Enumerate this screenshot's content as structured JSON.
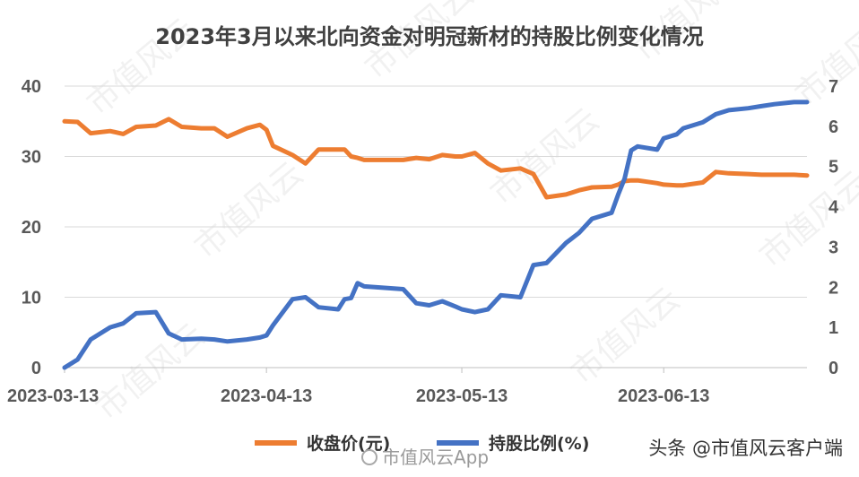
{
  "chart_data": {
    "type": "line",
    "title": "2023年3月以来北向资金对明冠新材的持股比例变化情况",
    "x": [
      "2023-03-13",
      "2023-03-15",
      "2023-03-17",
      "2023-03-20",
      "2023-03-22",
      "2023-03-24",
      "2023-03-27",
      "2023-03-29",
      "2023-03-31",
      "2023-04-03",
      "2023-04-05",
      "2023-04-07",
      "2023-04-10",
      "2023-04-12",
      "2023-04-13",
      "2023-04-14",
      "2023-04-17",
      "2023-04-19",
      "2023-04-21",
      "2023-04-24",
      "2023-04-25",
      "2023-04-26",
      "2023-04-27",
      "2023-04-28",
      "2023-05-04",
      "2023-05-06",
      "2023-05-08",
      "2023-05-10",
      "2023-05-12",
      "2023-05-13",
      "2023-05-15",
      "2023-05-17",
      "2023-05-19",
      "2023-05-22",
      "2023-05-24",
      "2023-05-26",
      "2023-05-29",
      "2023-05-31",
      "2023-06-02",
      "2023-06-05",
      "2023-06-06",
      "2023-06-07",
      "2023-06-08",
      "2023-06-09",
      "2023-06-12",
      "2023-06-13",
      "2023-06-15",
      "2023-06-16",
      "2023-06-19",
      "2023-06-21",
      "2023-06-23",
      "2023-06-26",
      "2023-06-28",
      "2023-06-30",
      "2023-07-03",
      "2023-07-05"
    ],
    "x_ticks": [
      "2023-03-13",
      "2023-04-13",
      "2023-05-13",
      "2023-06-13"
    ],
    "series": [
      {
        "name": "收盘价(元)",
        "axis": "left",
        "color": "#ED7D31",
        "values": [
          35.0,
          34.9,
          33.3,
          33.6,
          33.2,
          34.2,
          34.4,
          35.3,
          34.2,
          34.0,
          34.0,
          32.8,
          34.0,
          34.5,
          33.8,
          31.5,
          30.2,
          29.0,
          31.0,
          31.0,
          31.0,
          30.0,
          29.8,
          29.5,
          29.5,
          29.8,
          29.6,
          30.2,
          30.0,
          30.0,
          30.5,
          29.0,
          28.0,
          28.3,
          27.5,
          24.2,
          24.6,
          25.2,
          25.6,
          25.7,
          26.0,
          26.5,
          26.6,
          26.6,
          26.2,
          26.0,
          25.9,
          25.9,
          26.3,
          27.8,
          27.6,
          27.5,
          27.4,
          27.4,
          27.4,
          27.3
        ],
        "ylim": [
          0,
          40
        ],
        "yticks": [
          "0",
          "10",
          "20",
          "30",
          "40"
        ]
      },
      {
        "name": "持股比例(%)",
        "axis": "right",
        "color": "#4472C4",
        "values": [
          0.0,
          0.2,
          0.7,
          1.0,
          1.1,
          1.35,
          1.38,
          0.85,
          0.7,
          0.72,
          0.7,
          0.65,
          0.7,
          0.75,
          0.8,
          1.05,
          1.7,
          1.75,
          1.5,
          1.45,
          1.7,
          1.73,
          2.1,
          2.02,
          1.95,
          1.6,
          1.55,
          1.65,
          1.52,
          1.45,
          1.38,
          1.45,
          1.8,
          1.75,
          2.55,
          2.6,
          3.1,
          3.35,
          3.7,
          3.85,
          4.3,
          4.7,
          5.4,
          5.5,
          5.42,
          5.7,
          5.8,
          5.95,
          6.1,
          6.3,
          6.4,
          6.45,
          6.5,
          6.55,
          6.6,
          6.6
        ],
        "ylim": [
          0,
          7
        ],
        "yticks": [
          "0",
          "1",
          "2",
          "3",
          "4",
          "5",
          "6",
          "7"
        ]
      }
    ],
    "legend_position": "bottom",
    "grid": "horizontal"
  },
  "attribution": {
    "weibo": "头条 @市值风云客户端",
    "app": "市值风云App"
  },
  "watermark_text": "市值风云"
}
